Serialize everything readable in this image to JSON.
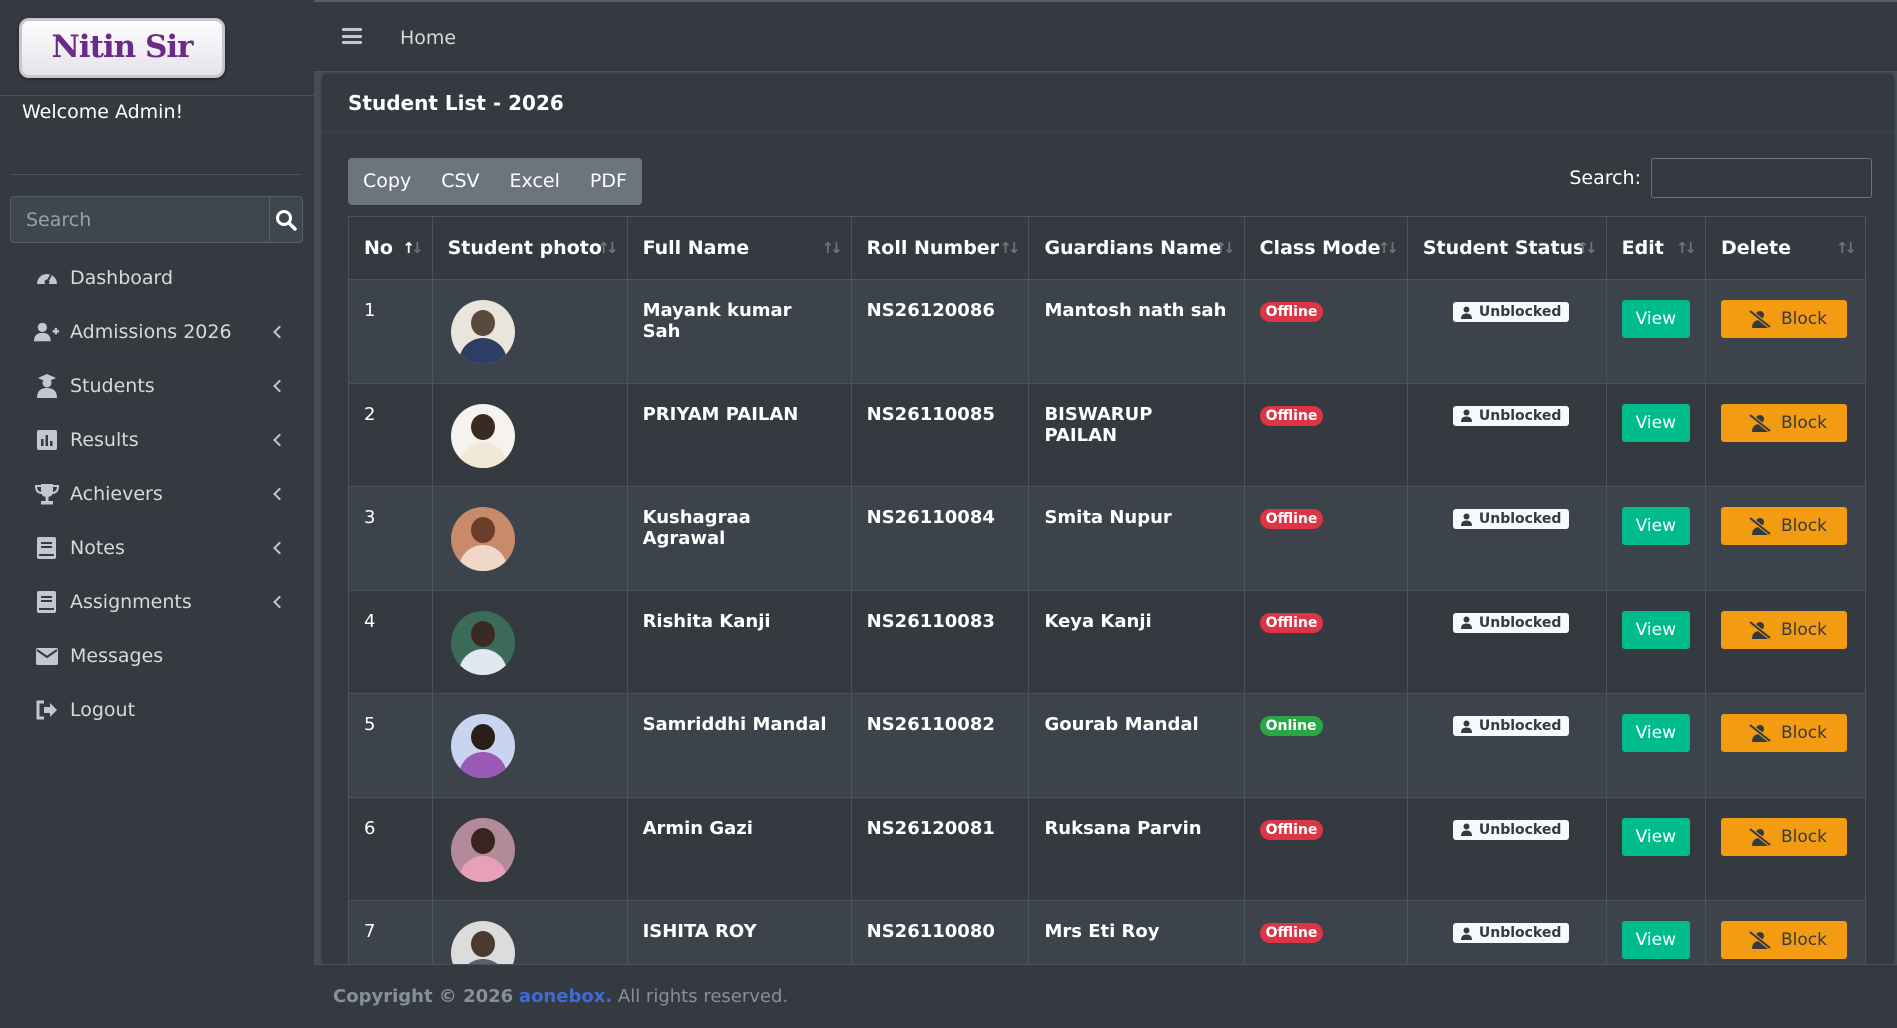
{
  "sidebar": {
    "logo_text": "Nitin Sir",
    "welcome": "Welcome Admin!",
    "search_placeholder": "Search",
    "items": [
      {
        "label": "Dashboard"
      },
      {
        "label": "Admissions 2026"
      },
      {
        "label": "Students"
      },
      {
        "label": "Results"
      },
      {
        "label": "Achievers"
      },
      {
        "label": "Notes"
      },
      {
        "label": "Assignments"
      },
      {
        "label": "Messages"
      },
      {
        "label": "Logout"
      }
    ]
  },
  "topbar": {
    "home": "Home"
  },
  "card": {
    "title": "Student List - 2026",
    "buttons": {
      "copy": "Copy",
      "csv": "CSV",
      "excel": "Excel",
      "pdf": "PDF"
    },
    "search_label": "Search:"
  },
  "table": {
    "headers": [
      "No",
      "Student photo",
      "Full Name",
      "Roll Number",
      "Guardians Name",
      "Class Mode",
      "Student Status",
      "Edit",
      "Delete"
    ],
    "view_label": "View",
    "block_label": "Block",
    "rows": [
      {
        "no": "1",
        "name": "Mayank kumar Sah",
        "roll": "NS26120086",
        "guardian": "Mantosh nath sah",
        "mode": "Offline",
        "status": "Unblocked"
      },
      {
        "no": "2",
        "name": "PRIYAM PAILAN",
        "roll": "NS26110085",
        "guardian": "BISWARUP PAILAN",
        "mode": "Offline",
        "status": "Unblocked"
      },
      {
        "no": "3",
        "name": "Kushagraa Agrawal",
        "roll": "NS26110084",
        "guardian": "Smita Nupur",
        "mode": "Offline",
        "status": "Unblocked"
      },
      {
        "no": "4",
        "name": "Rishita Kanji",
        "roll": "NS26110083",
        "guardian": "Keya Kanji",
        "mode": "Offline",
        "status": "Unblocked"
      },
      {
        "no": "5",
        "name": "Samriddhi Mandal",
        "roll": "NS26110082",
        "guardian": "Gourab Mandal",
        "mode": "Online",
        "status": "Unblocked"
      },
      {
        "no": "6",
        "name": "Armin Gazi",
        "roll": "NS26120081",
        "guardian": "Ruksana Parvin",
        "mode": "Offline",
        "status": "Unblocked"
      },
      {
        "no": "7",
        "name": "ISHITA ROY",
        "roll": "NS26110080",
        "guardian": "Mrs Eti Roy",
        "mode": "Offline",
        "status": "Unblocked"
      }
    ]
  },
  "footer": {
    "prefix": "Copyright © 2026",
    "link": "aonebox.",
    "suffix": "All rights reserved."
  },
  "colors": {
    "offline": "#dc3545",
    "online": "#28a745",
    "view": "#00bc8c",
    "block": "#f39c12"
  }
}
